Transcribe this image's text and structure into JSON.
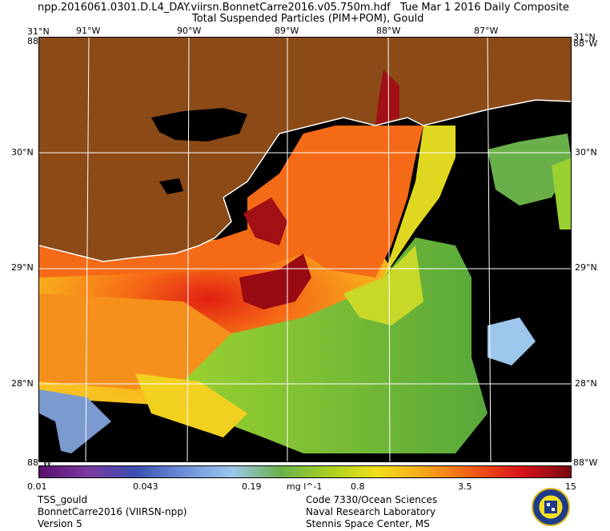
{
  "header": {
    "filename": "npp.2016061.0301.D.L4_DAY.viirsn.BonnetCarre2016.v05.750m.hdf",
    "date": "Tue Mar  1 2016 Daily Composite",
    "product": "Total Suspended Particles (PIM+POM), Gould"
  },
  "axes": {
    "top_lon": [
      "91°W",
      "90°W",
      "89°W",
      "88°W",
      "87°W"
    ],
    "lat": [
      "30°N",
      "29°N",
      "28°N"
    ],
    "corner_top_left": "31°N",
    "corner_top_right": "31°N",
    "corner_edge_top": "88°W",
    "corner_edge_bottom": "88°W"
  },
  "colorbar": {
    "ticks": [
      "0.01",
      "0.043",
      "0.19",
      "0.8",
      "3.5",
      "15"
    ],
    "unit": "mg l^-1",
    "colors": [
      "#5a0f6e",
      "#7a3aa0",
      "#3a4fb0",
      "#6d8fd8",
      "#9cc6ec",
      "#6ab04a",
      "#a8d020",
      "#f0e018",
      "#f7a41c",
      "#f05a14",
      "#d8101a",
      "#7a0a12"
    ]
  },
  "footer": {
    "left": [
      "TSS_gould",
      "BonnetCarre2016 (VIIRSN-npp)",
      "Version 5"
    ],
    "right": [
      "Code 7330/Ocean Sciences",
      "Naval Research Laboratory",
      "Stennis Space Center, MS"
    ]
  },
  "colors": {
    "land": "#8b4a16",
    "nodata": "#000000",
    "grid": "#ffffff"
  }
}
